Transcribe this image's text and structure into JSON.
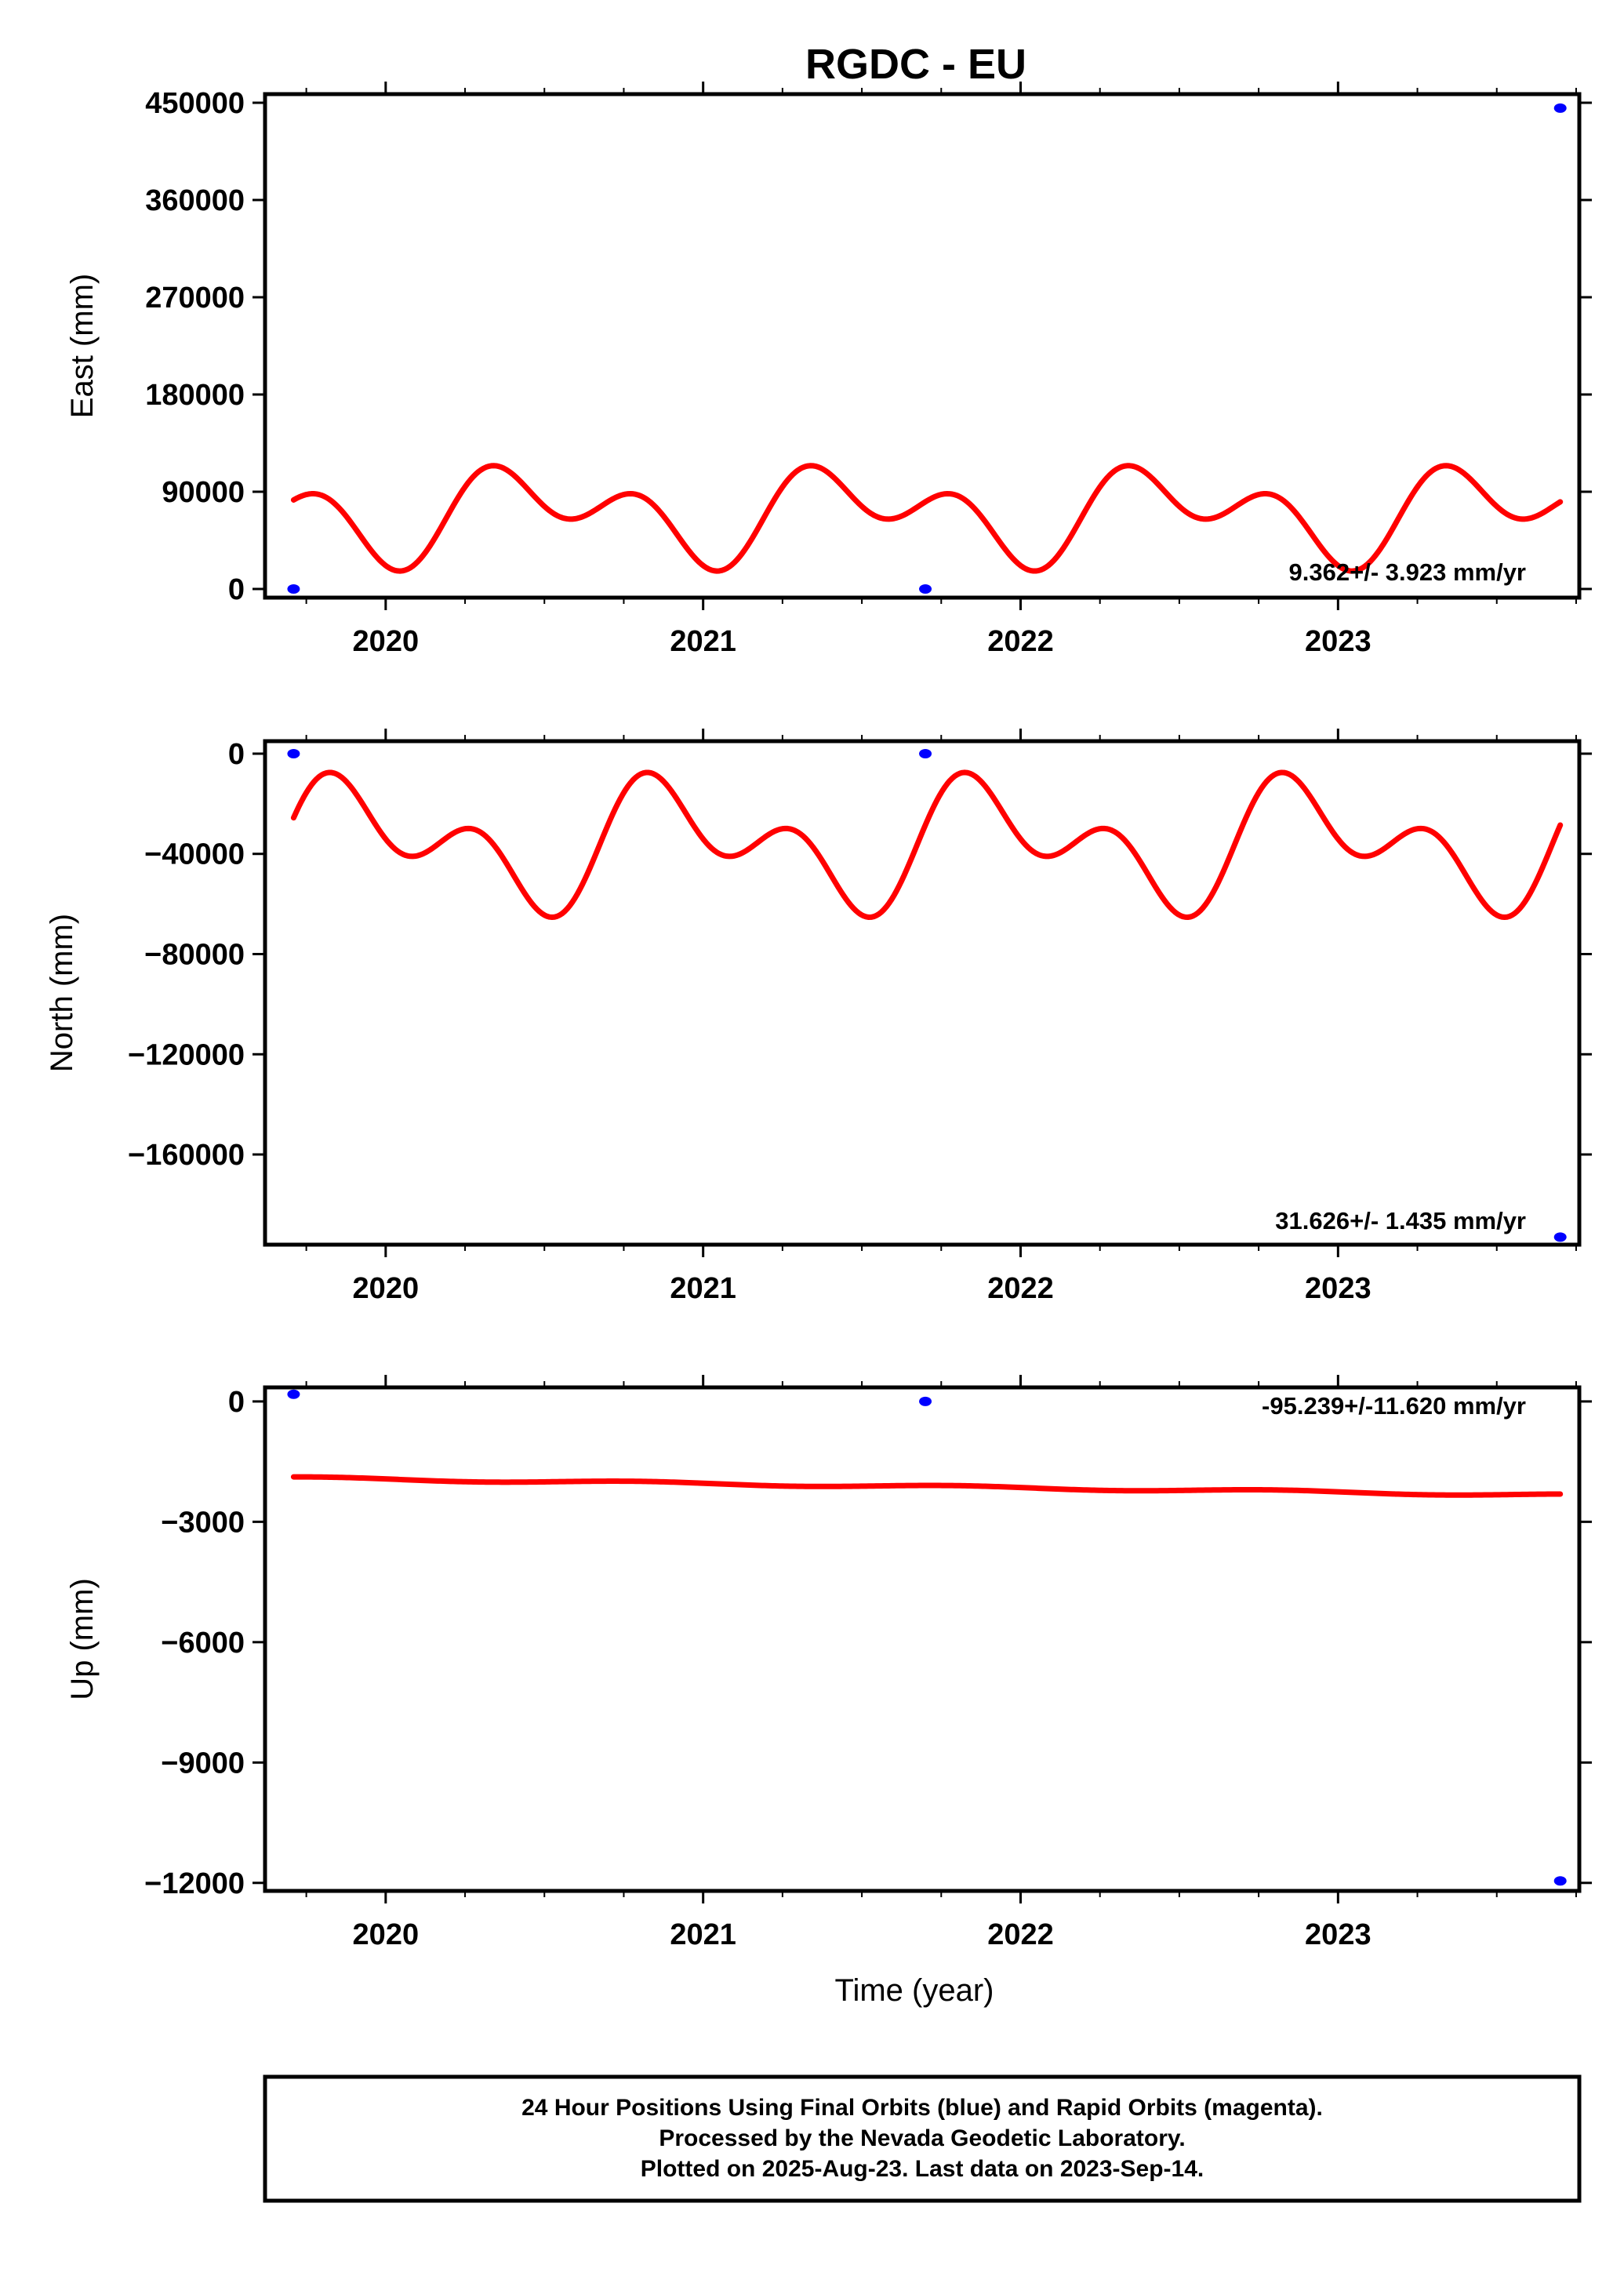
{
  "title": "RGDC - EU",
  "footer": {
    "lines": [
      "24 Hour Positions Using Final Orbits (blue) and Rapid Orbits (magenta).",
      "Processed by the Nevada Geodetic Laboratory.",
      "Plotted on 2025-Aug-23. Last data on 2023-Sep-14."
    ]
  },
  "colors": {
    "points": "#0000ff",
    "model": "#ff0000",
    "frame": "#000000"
  },
  "chart_data": [
    {
      "type": "scatter",
      "ylabel": "East (mm)",
      "xlabel": "",
      "xlim": [
        2019.62,
        2023.76
      ],
      "ylim": [
        -8000,
        458000
      ],
      "yticks": [
        0,
        90000,
        180000,
        270000,
        360000,
        450000
      ],
      "ytick_labels": [
        "0",
        "90000",
        "180000",
        "270000",
        "360000",
        "450000"
      ],
      "xticks": [
        2020,
        2021,
        2022,
        2023
      ],
      "xtick_labels": [
        "2020",
        "2021",
        "2022",
        "2023"
      ],
      "rate": "9.362+/- 3.923 mm/yr",
      "points": [
        {
          "x": 2019.71,
          "y": 0
        },
        {
          "x": 2021.7,
          "y": 0
        },
        {
          "x": 2023.7,
          "y": 445000
        }
      ],
      "model": {
        "x_start": 2019.71,
        "x_end": 2023.7,
        "offset": 70000,
        "trend_per_year": 0,
        "annual_cos": 3400,
        "annual_sin": -27400,
        "semiannual_cos": 9000,
        "semiannual_sin": 27100
      }
    },
    {
      "type": "scatter",
      "ylabel": "North (mm)",
      "xlabel": "",
      "xlim": [
        2019.62,
        2023.76
      ],
      "ylim": [
        -196000,
        5000
      ],
      "yticks": [
        0,
        -40000,
        -80000,
        -120000,
        -160000
      ],
      "ytick_labels": [
        "0",
        "−40000",
        "−80000",
        "−120000",
        "−160000"
      ],
      "xticks": [
        2020,
        2021,
        2022,
        2023
      ],
      "xtick_labels": [
        "2020",
        "2021",
        "2022",
        "2023"
      ],
      "rate": "31.626+/- 1.435 mm/yr",
      "points": [
        {
          "x": 2019.71,
          "y": 0
        },
        {
          "x": 2021.7,
          "y": 0
        },
        {
          "x": 2023.7,
          "y": -193000
        }
      ],
      "model": {
        "x_start": 2019.71,
        "x_end": 2023.7,
        "offset": -36000,
        "trend_per_year": 0,
        "annual_cos": 3200,
        "annual_sin": 16500,
        "semiannual_cos": 7200,
        "semiannual_sin": 14400
      }
    },
    {
      "type": "scatter",
      "ylabel": "Up (mm)",
      "xlabel": "Time (year)",
      "xlim": [
        2019.62,
        2023.76
      ],
      "ylim": [
        -12200,
        350
      ],
      "yticks": [
        0,
        -3000,
        -6000,
        -9000,
        -12000
      ],
      "ytick_labels": [
        "0",
        "−3000",
        "−6000",
        "−9000",
        "−12000"
      ],
      "xticks": [
        2020,
        2021,
        2022,
        2023
      ],
      "xtick_labels": [
        "2020",
        "2021",
        "2022",
        "2023"
      ],
      "rate": "-95.239+/-11.620 mm/yr",
      "points": [
        {
          "x": 2019.71,
          "y": 180
        },
        {
          "x": 2021.7,
          "y": 0
        },
        {
          "x": 2023.7,
          "y": -11950
        }
      ],
      "model": {
        "x_start": 2019.71,
        "x_end": 2023.7,
        "offset": -1910,
        "trend_per_year": -107,
        "annual_cos": 30,
        "annual_sin": 18,
        "semiannual_cos": 0,
        "semiannual_sin": 0
      }
    }
  ]
}
